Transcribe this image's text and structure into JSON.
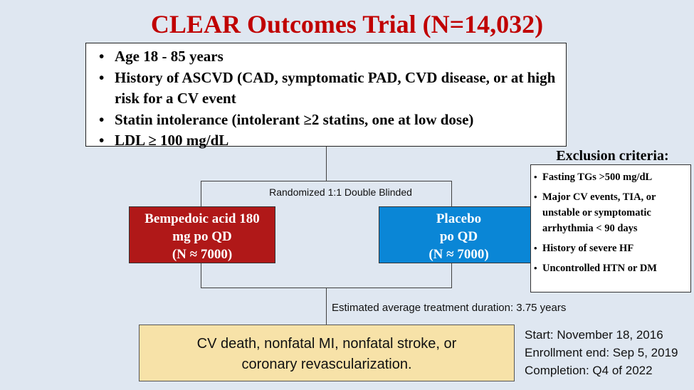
{
  "title": "CLEAR Outcomes Trial (N=14,032)",
  "inclusion": {
    "items": [
      "Age 18 - 85 years",
      "History of ASCVD (CAD, symptomatic PAD, CVD disease, or at high risk for a CV event",
      "Statin intolerance (intolerant  ≥2 statins, one at low dose)",
      "LDL ≥ 100 mg/dL"
    ]
  },
  "randomization": {
    "label": "Randomized 1:1 Double Blinded"
  },
  "arms": {
    "drug": {
      "line1": "Bempedoic acid 180",
      "line2": "mg po QD",
      "line3": "(N ≈ 7000)",
      "color": "#b01818"
    },
    "placebo": {
      "line1": "Placebo",
      "line2": "po QD",
      "line3": "(N ≈ 7000)",
      "color": "#0a86d6"
    }
  },
  "duration": {
    "label": "Estimated average treatment duration: 3.75 years"
  },
  "outcome": {
    "line1": "CV death, nonfatal MI, nonfatal stroke, or",
    "line2": "coronary revascularization."
  },
  "exclusion": {
    "title": "Exclusion criteria:",
    "items": [
      "Fasting TGs >500 mg/dL",
      "Major CV events, TIA, or unstable or symptomatic arrhythmia < 90 days",
      "History of severe HF",
      "Uncontrolled HTN or DM"
    ]
  },
  "dates": {
    "start": "Start: November 18, 2016",
    "enrollment_end": "Enrollment end: Sep 5, 2019",
    "completion": "Completion: Q4 of 2022"
  }
}
